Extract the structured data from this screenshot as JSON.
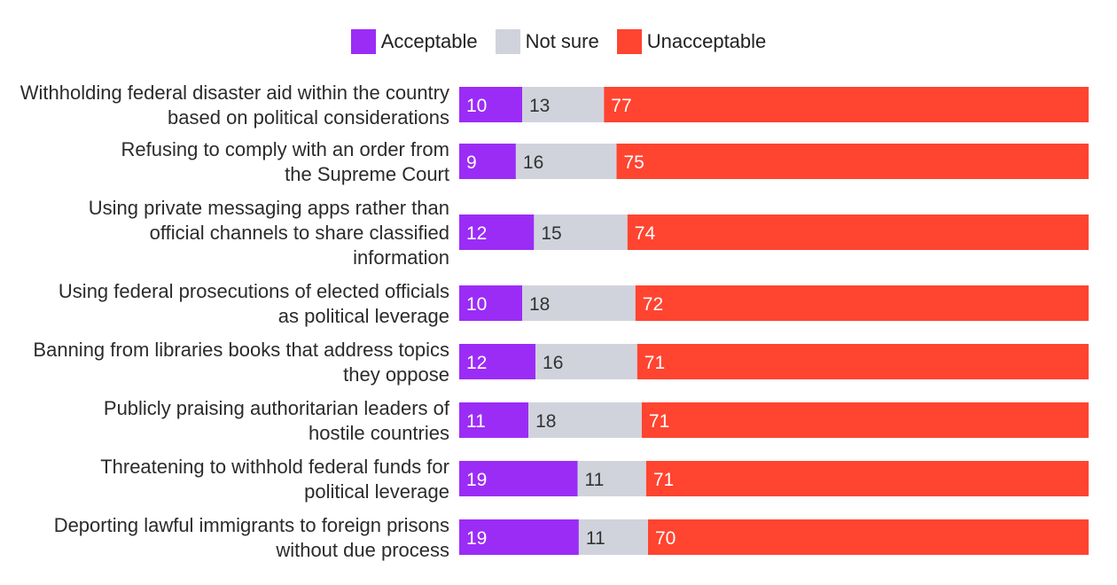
{
  "chart_data": {
    "type": "bar",
    "orientation": "horizontal",
    "stacked": true,
    "legend_position": "top-center",
    "categories": [
      "Withholding federal disaster aid within the country based on political considerations",
      "Refusing to comply with an order from the Supreme Court",
      "Using private messaging apps rather than official channels to share classified information",
      "Using federal prosecutions of elected officials as political leverage",
      "Banning from libraries books that address topics they oppose",
      "Publicly praising authoritarian leaders of hostile countries",
      "Threatening to withhold federal funds for political leverage",
      "Deporting lawful immigrants to foreign prisons without due process"
    ],
    "series": [
      {
        "name": "Acceptable",
        "color": "#9b2cf6",
        "label_color": "#ffffff",
        "values": [
          10,
          9,
          12,
          10,
          12,
          11,
          19,
          19
        ]
      },
      {
        "name": "Not sure",
        "color": "#d1d3dc",
        "label_color": "#333333",
        "values": [
          13,
          16,
          15,
          18,
          16,
          18,
          11,
          11
        ]
      },
      {
        "name": "Unacceptable",
        "color": "#ff4430",
        "label_color": "#ffffff",
        "values": [
          77,
          75,
          74,
          72,
          71,
          71,
          71,
          70
        ]
      }
    ]
  }
}
